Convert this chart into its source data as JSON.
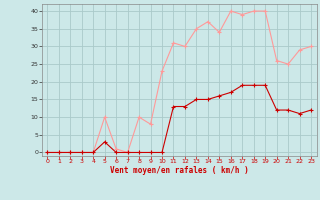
{
  "x": [
    0,
    1,
    2,
    3,
    4,
    5,
    6,
    7,
    8,
    9,
    10,
    11,
    12,
    13,
    14,
    15,
    16,
    17,
    18,
    19,
    20,
    21,
    22,
    23
  ],
  "wind_avg": [
    0,
    0,
    0,
    0,
    0,
    3,
    0,
    0,
    0,
    0,
    0,
    13,
    13,
    15,
    15,
    16,
    17,
    19,
    19,
    19,
    12,
    12,
    11,
    12
  ],
  "wind_gust": [
    0,
    0,
    0,
    0,
    0,
    10,
    1,
    0,
    10,
    8,
    23,
    31,
    30,
    35,
    37,
    34,
    40,
    39,
    40,
    40,
    26,
    25,
    29,
    30
  ],
  "bg_color": "#cce8e8",
  "grid_color": "#aacaca",
  "line_avg_color": "#cc0000",
  "line_gust_color": "#ff9999",
  "xlabel": "Vent moyen/en rafales ( km/h )",
  "xlabel_color": "#cc0000",
  "yticks": [
    0,
    5,
    10,
    15,
    20,
    25,
    30,
    35,
    40
  ],
  "xticks": [
    0,
    1,
    2,
    3,
    4,
    5,
    6,
    7,
    8,
    9,
    10,
    11,
    12,
    13,
    14,
    15,
    16,
    17,
    18,
    19,
    20,
    21,
    22,
    23
  ],
  "ylim": [
    -1,
    42
  ],
  "xlim": [
    -0.5,
    23.5
  ]
}
